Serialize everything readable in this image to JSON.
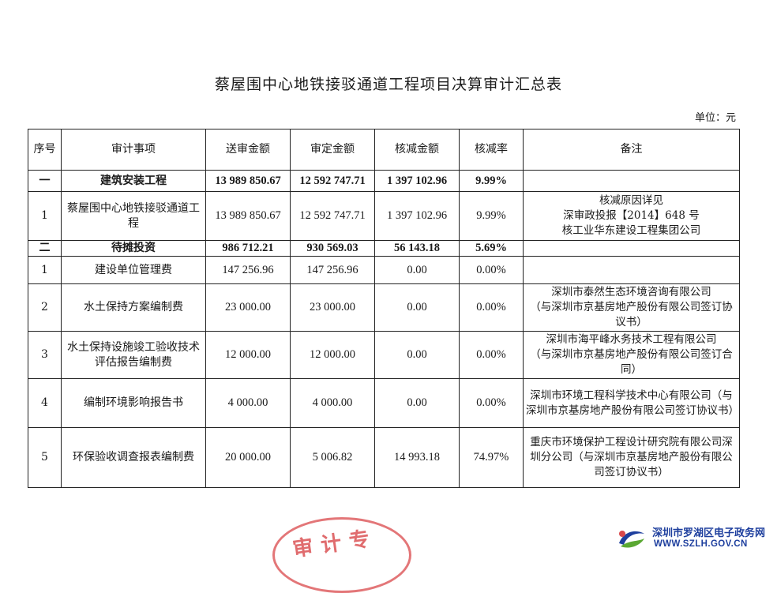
{
  "document": {
    "title": "蔡屋围中心地铁接驳通道工程项目决算审计汇总表",
    "unit": "单位：元"
  },
  "table": {
    "headers": [
      "序号",
      "审计事项",
      "送审金额",
      "审定金额",
      "核减金额",
      "核减率",
      "备注"
    ],
    "rows": [
      {
        "no": "一",
        "item": "建筑安装工程",
        "submitted": "13 989 850.67",
        "approved": "12 592 747.71",
        "reduction": "1 397 102.96",
        "rate": "9.99%",
        "remark": "",
        "bold": true
      },
      {
        "no": "1",
        "item": "蔡屋围中心地铁接驳通道工程",
        "submitted": "13 989 850.67",
        "approved": "12 592 747.71",
        "reduction": "1 397 102.96",
        "rate": "9.99%",
        "remark": "核减原因详见\n深审政投报【2014】648 号\n核工业华东建设工程集团公司",
        "bold": false
      },
      {
        "no": "二",
        "item": "待摊投资",
        "submitted": "986 712.21",
        "approved": "930 569.03",
        "reduction": "56 143.18",
        "rate": "5.69%",
        "remark": "",
        "bold": true
      },
      {
        "no": "1",
        "item": "建设单位管理费",
        "submitted": "147 256.96",
        "approved": "147 256.96",
        "reduction": "0.00",
        "rate": "0.00%",
        "remark": "",
        "bold": false
      },
      {
        "no": "2",
        "item": "水土保持方案编制费",
        "submitted": "23 000.00",
        "approved": "23 000.00",
        "reduction": "0.00",
        "rate": "0.00%",
        "remark": "深圳市泰然生态环境咨询有限公司\n（与深圳市京基房地产股份有限公司签订协议书）",
        "bold": false
      },
      {
        "no": "3",
        "item": "水土保持设施竣工验收技术评估报告编制费",
        "submitted": "12 000.00",
        "approved": "12 000.00",
        "reduction": "0.00",
        "rate": "0.00%",
        "remark": "深圳市海平峰水务技术工程有限公司\n（与深圳市京基房地产股份有限公司签订合同）",
        "bold": false
      },
      {
        "no": "4",
        "item": "编制环境影响报告书",
        "submitted": "4 000.00",
        "approved": "4 000.00",
        "reduction": "0.00",
        "rate": "0.00%",
        "remark": "深圳市环境工程科学技术中心有限公司（与深圳市京基房地产股份有限公司签订协议书）",
        "bold": false
      },
      {
        "no": "5",
        "item": "环保验收调查报表编制费",
        "submitted": "20 000.00",
        "approved": "5 006.82",
        "reduction": "14 993.18",
        "rate": "74.97%",
        "remark": "重庆市环境保护工程设计研究院有限公司深圳分公司（与深圳市京基房地产股份有限公司签订协议书）",
        "bold": false
      }
    ]
  },
  "stamp": {
    "text": "审计专"
  },
  "watermark": {
    "site_name": "深圳市罗湖区电子政务网",
    "url": "WWW.SZLH.GOV.CN",
    "colors": {
      "blue": "#1e3f9e",
      "green": "#5aa832",
      "red": "#d9484b"
    }
  }
}
